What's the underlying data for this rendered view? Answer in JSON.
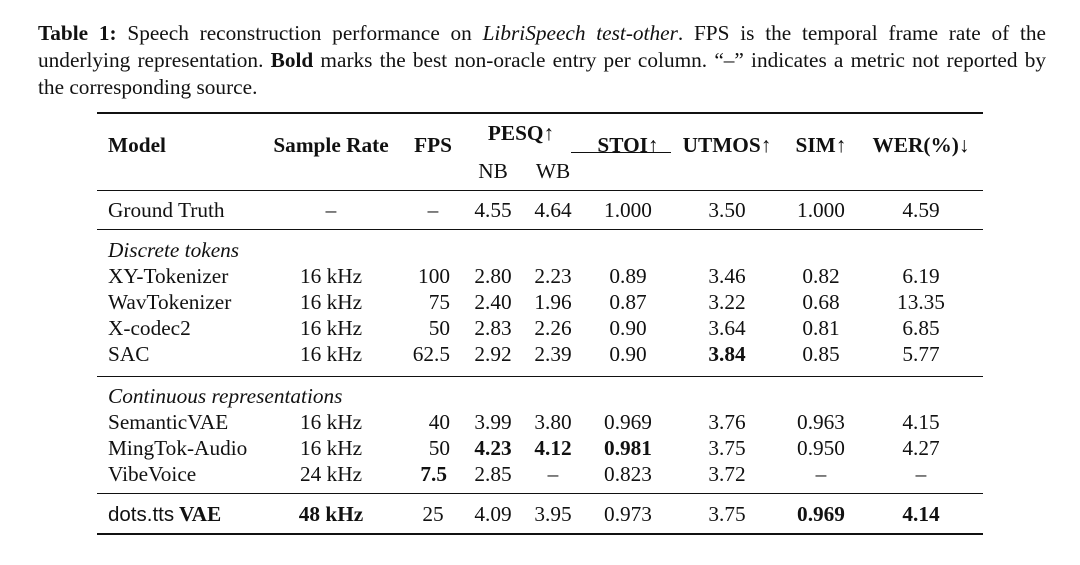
{
  "caption": {
    "label": "Table 1:",
    "text1": " Speech reconstruction performance on ",
    "dataset": "LibriSpeech test-other",
    "text2": ".  FPS is the temporal frame rate of the underlying representation. ",
    "bold_word": "Bold",
    "text3": " marks the best non-oracle entry per column.  “–” indicates a metric not reported by the corresponding source."
  },
  "headers": {
    "model": "Model",
    "sample_rate": "Sample Rate",
    "fps": "FPS",
    "pesq": "PESQ↑",
    "nb": "NB",
    "wb": "WB",
    "stoi": "STOI↑",
    "utmos": "UTMOS↑",
    "sim": "SIM↑",
    "wer": "WER(%)↓"
  },
  "ground_truth": {
    "model": "Ground Truth",
    "sample_rate": "–",
    "fps": "–",
    "nb": "4.55",
    "wb": "4.64",
    "stoi": "1.000",
    "utmos": "3.50",
    "sim": "1.000",
    "wer": "4.59"
  },
  "discrete_section": "Discrete tokens",
  "discrete_rows": [
    {
      "model": "XY-Tokenizer",
      "sample_rate": "16 kHz",
      "fps": "100",
      "nb": "2.80",
      "wb": "2.23",
      "stoi": "0.89",
      "utmos": "3.46",
      "sim": "0.82",
      "wer": "6.19"
    },
    {
      "model": "WavTokenizer",
      "sample_rate": "16 kHz",
      "fps": "75",
      "nb": "2.40",
      "wb": "1.96",
      "stoi": "0.87",
      "utmos": "3.22",
      "sim": "0.68",
      "wer": "13.35"
    },
    {
      "model": "X-codec2",
      "sample_rate": "16 kHz",
      "fps": "50",
      "nb": "2.83",
      "wb": "2.26",
      "stoi": "0.90",
      "utmos": "3.64",
      "sim": "0.81",
      "wer": "6.85"
    },
    {
      "model": "SAC",
      "sample_rate": "16 kHz",
      "fps": "62.5",
      "nb": "2.92",
      "wb": "2.39",
      "stoi": "0.90",
      "utmos": "3.84",
      "sim": "0.85",
      "wer": "5.77"
    }
  ],
  "continuous_section": "Continuous representations",
  "continuous_rows": [
    {
      "model": "SemanticVAE",
      "sample_rate": "16 kHz",
      "fps": "40",
      "nb": "3.99",
      "wb": "3.80",
      "stoi": "0.969",
      "utmos": "3.76",
      "sim": "0.963",
      "wer": "4.15"
    },
    {
      "model": "MingTok-Audio",
      "sample_rate": "16 kHz",
      "fps": "50",
      "nb": "4.23",
      "wb": "4.12",
      "stoi": "0.981",
      "utmos": "3.75",
      "sim": "0.950",
      "wer": "4.27"
    },
    {
      "model": "VibeVoice",
      "sample_rate": "24 kHz",
      "fps": "7.5",
      "nb": "2.85",
      "wb": "–",
      "stoi": "0.823",
      "utmos": "3.72",
      "sim": "–",
      "wer": "–"
    }
  ],
  "ours": {
    "model_a": "dots.tts",
    "model_b": " VAE",
    "sample_rate": "48 kHz",
    "fps": "25",
    "nb": "4.09",
    "wb": "3.95",
    "stoi": "0.973",
    "utmos": "3.75",
    "sim": "0.969",
    "wer": "4.14"
  }
}
